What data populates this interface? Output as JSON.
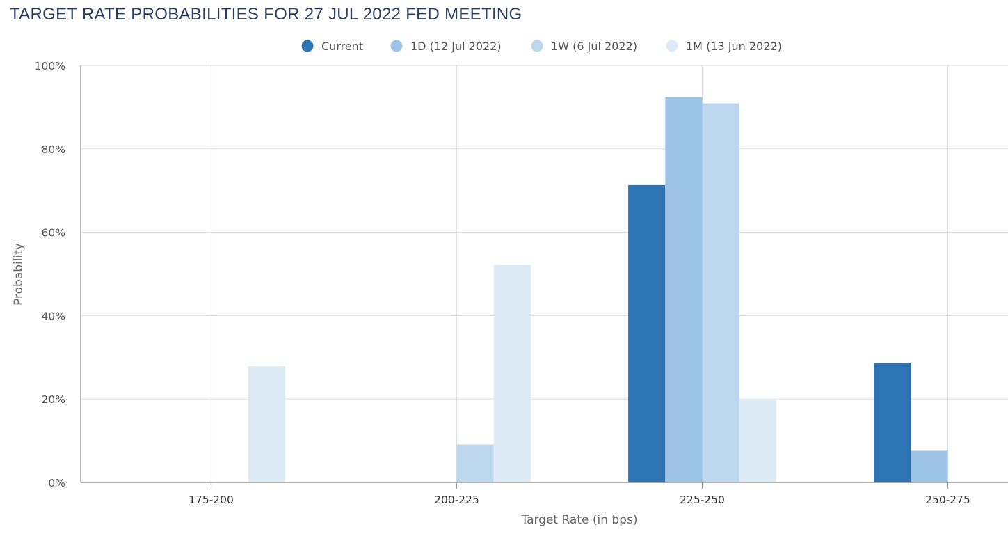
{
  "chart_data": {
    "type": "bar",
    "title": "TARGET RATE PROBABILITIES FOR 27 JUL 2022 FED MEETING",
    "xlabel": "Target Rate (in bps)",
    "ylabel": "Probability",
    "categories": [
      "175-200",
      "200-225",
      "225-250",
      "250-275"
    ],
    "y_ticks": [
      "0%",
      "20%",
      "40%",
      "60%",
      "80%",
      "100%"
    ],
    "ylim": [
      0,
      100
    ],
    "grid": true,
    "legend_position": "top-center",
    "series": [
      {
        "name": "Current",
        "color": "#2e74b5",
        "values": [
          0,
          0,
          71.3,
          28.7
        ]
      },
      {
        "name": "1D (12 Jul 2022)",
        "color": "#9dc3e6",
        "values": [
          0,
          0,
          92.4,
          7.6
        ]
      },
      {
        "name": "1W (6 Jul 2022)",
        "color": "#bdd7ee",
        "values": [
          0,
          9.1,
          90.9,
          0
        ]
      },
      {
        "name": "1M (13 Jun 2022)",
        "color": "#ddebf7",
        "values": [
          27.9,
          52.2,
          19.9,
          0
        ]
      }
    ]
  }
}
